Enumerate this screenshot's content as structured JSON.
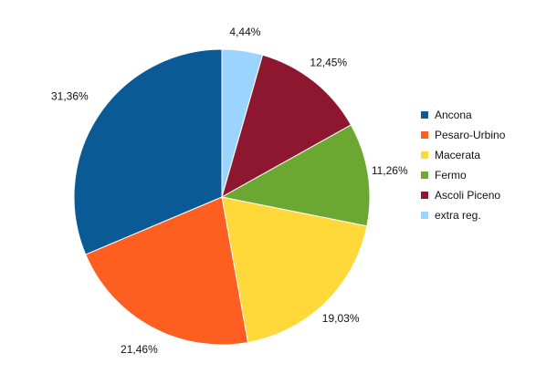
{
  "chart_data": {
    "type": "pie",
    "categories": [
      "Ancona",
      "Pesaro-Urbino",
      "Macerata",
      "Fermo",
      "Ascoli Piceno",
      "extra reg."
    ],
    "values": [
      31.36,
      21.46,
      19.03,
      11.26,
      12.45,
      4.44
    ],
    "labels": [
      "31,36%",
      "21,46%",
      "19,03%",
      "11,26%",
      "12,45%",
      "4,44%"
    ],
    "slice_order": [
      "extra reg.",
      "Ascoli Piceno",
      "Fermo",
      "Macerata",
      "Pesaro-Urbino",
      "Ancona"
    ],
    "start_angle": "12 o'clock",
    "direction": "clockwise",
    "colors": {
      "Ancona": "#0a5a96",
      "Pesaro-Urbino": "#ff5e21",
      "Macerata": "#ffd93a",
      "Fermo": "#6aa832",
      "Ascoli Piceno": "#8e1730",
      "extra reg.": "#9ad4ff"
    },
    "legend": {
      "placement": "right",
      "items": [
        "Ancona",
        "Pesaro-Urbino",
        "Macerata",
        "Fermo",
        "Ascoli Piceno",
        "extra reg."
      ]
    }
  }
}
